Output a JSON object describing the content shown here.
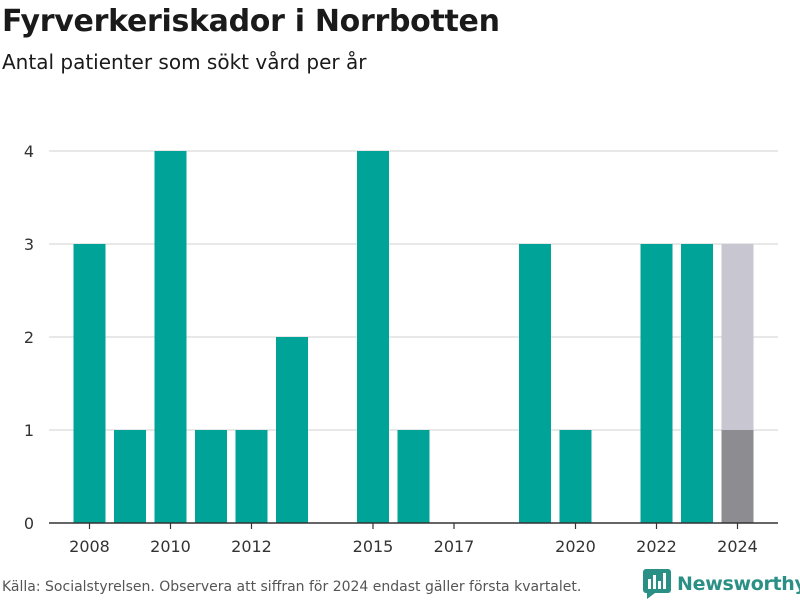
{
  "header": {
    "title": "Fyrverkeriskador i Norrbotten",
    "subtitle": "Antal patienter som sökt vård per år"
  },
  "footer": {
    "source": "Källa: Socialstyrelsen. Observera att siffran för 2024 endast gäller första kvartalet.",
    "logo_text": "Newsworthy"
  },
  "colors": {
    "bar": "#00a398",
    "partial_bar": "#8c8c91",
    "projection_bar": "#c7c6d1",
    "grid": "#d9d9d9",
    "axis": "#333333",
    "brand": "#2a8f84"
  },
  "chart_data": {
    "type": "bar",
    "title": "Fyrverkeriskador i Norrbotten",
    "subtitle": "Antal patienter som sökt vård per år",
    "xlabel": "",
    "ylabel": "",
    "ylim": [
      0,
      4
    ],
    "yticks": [
      0,
      1,
      2,
      3,
      4
    ],
    "xlim": [
      2007,
      2025
    ],
    "xticks": [
      2008,
      2010,
      2012,
      2015,
      2017,
      2020,
      2022,
      2024
    ],
    "grid": true,
    "series": [
      {
        "x": [
          2008,
          2009,
          2010,
          2011,
          2012,
          2013,
          2015,
          2016,
          2017,
          2019,
          2020,
          2022,
          2023
        ],
        "values": [
          3,
          1,
          4,
          1,
          1,
          2,
          4,
          1,
          0,
          3,
          1,
          3,
          3
        ]
      }
    ],
    "partial_year": {
      "x": 2024,
      "value": 1,
      "projection": 3
    }
  }
}
